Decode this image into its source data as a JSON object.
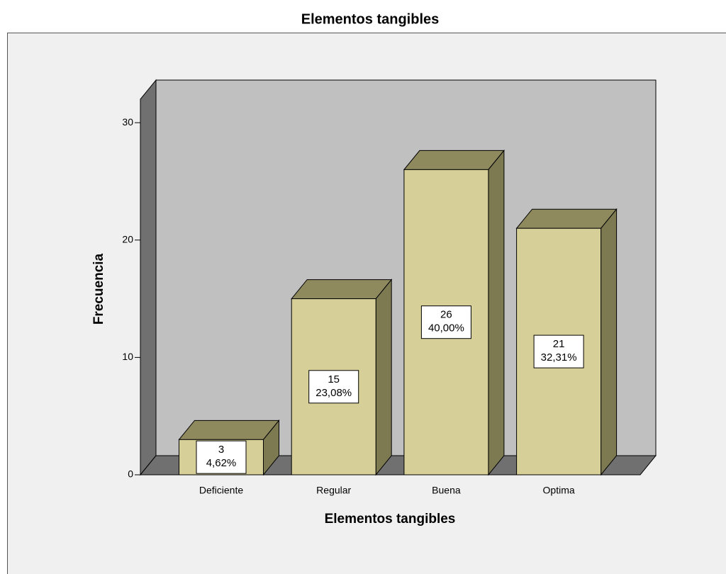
{
  "chart_data": {
    "type": "bar3d",
    "title": "Elementos tangibles",
    "x_label": "Elementos tangibles",
    "y_label": "Frecuencia",
    "categories": [
      "Deficiente",
      "Regular",
      "Buena",
      "Optima"
    ],
    "values": [
      3,
      15,
      26,
      21
    ],
    "percentages": [
      {
        "value": 4.62,
        "label": "4,62%"
      },
      {
        "value": 23.08,
        "label": "23,08%"
      },
      {
        "value": 40.0,
        "label": "40,00%"
      },
      {
        "value": 32.31,
        "label": "32,31%"
      }
    ],
    "color": "#d6cf98",
    "ylim": [
      0,
      32
    ],
    "yticks": [
      0,
      10,
      20,
      30
    ]
  }
}
